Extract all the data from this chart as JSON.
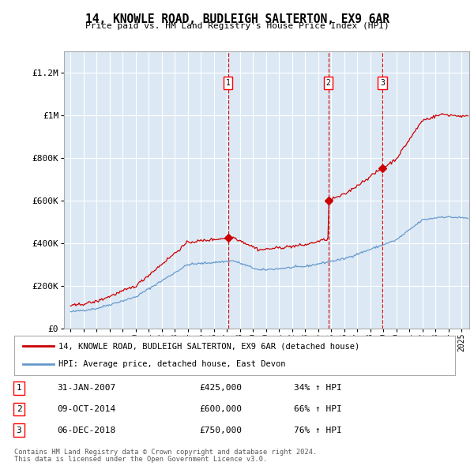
{
  "title": "14, KNOWLE ROAD, BUDLEIGH SALTERTON, EX9 6AR",
  "subtitle": "Price paid vs. HM Land Registry's House Price Index (HPI)",
  "legend_line1": "14, KNOWLE ROAD, BUDLEIGH SALTERTON, EX9 6AR (detached house)",
  "legend_line2": "HPI: Average price, detached house, East Devon",
  "sale_labels": [
    {
      "num": 1,
      "label_date": "31-JAN-2007",
      "price": 425000,
      "hpi_pct": "34%"
    },
    {
      "num": 2,
      "label_date": "09-OCT-2014",
      "price": 600000,
      "hpi_pct": "66%"
    },
    {
      "num": 3,
      "label_date": "06-DEC-2018",
      "price": 750000,
      "hpi_pct": "76%"
    }
  ],
  "sale_dates_yr": [
    2007.08,
    2014.78,
    2018.92
  ],
  "sale_prices": [
    425000,
    600000,
    750000
  ],
  "footer_line1": "Contains HM Land Registry data © Crown copyright and database right 2024.",
  "footer_line2": "This data is licensed under the Open Government Licence v3.0.",
  "plot_bg_color": "#dce9f5",
  "red_line_color": "#cc0000",
  "blue_line_color": "#6699cc",
  "grid_color": "#ffffff",
  "ylim_max": 1300000,
  "x_start": 1994.5,
  "x_end": 2025.6,
  "yticks": [
    0,
    200000,
    400000,
    600000,
    800000,
    1000000,
    1200000
  ],
  "ylabels": [
    "£0",
    "£200K",
    "£400K",
    "£600K",
    "£800K",
    "£1M",
    "£1.2M"
  ],
  "xtick_years": [
    1995,
    1996,
    1997,
    1998,
    1999,
    2000,
    2001,
    2002,
    2003,
    2004,
    2005,
    2006,
    2007,
    2008,
    2009,
    2010,
    2011,
    2012,
    2013,
    2014,
    2015,
    2016,
    2017,
    2018,
    2019,
    2020,
    2021,
    2022,
    2023,
    2024,
    2025
  ]
}
